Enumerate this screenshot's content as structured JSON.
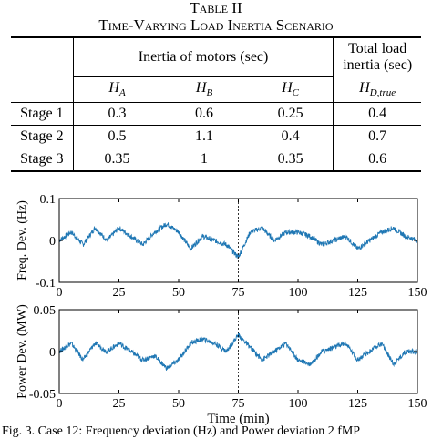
{
  "table": {
    "caption_line1": "Table II",
    "caption_line2": "Time-Varying Load Inertia Scenario",
    "header_group": "Inertia of motors (sec)",
    "header_total": "Total load inertia (sec)",
    "sub_headers": [
      {
        "main": "H",
        "sub": "A"
      },
      {
        "main": "H",
        "sub": "B"
      },
      {
        "main": "H",
        "sub": "C"
      },
      {
        "main": "H",
        "sub": "D,true"
      }
    ],
    "rows": [
      {
        "label": "Stage 1",
        "values": [
          "0.3",
          "0.6",
          "0.25",
          "0.4"
        ]
      },
      {
        "label": "Stage 2",
        "values": [
          "0.5",
          "1.1",
          "0.4",
          "0.7"
        ]
      },
      {
        "label": "Stage 3",
        "values": [
          "0.35",
          "1",
          "0.35",
          "0.6"
        ]
      }
    ]
  },
  "chart_data": [
    {
      "type": "line",
      "ylabel": "Freq. Dev. (Hz)",
      "xlabel": "",
      "xlim": [
        0,
        150
      ],
      "ylim": [
        -0.1,
        0.1
      ],
      "x_ticks": [
        "0",
        "25",
        "50",
        "75",
        "100",
        "125",
        "150"
      ],
      "y_ticks": [
        "0.1",
        "0",
        "-0.1"
      ],
      "marker_x": 75,
      "line_color": "#1f77b4",
      "x": [
        0,
        5,
        10,
        15,
        20,
        25,
        30,
        35,
        40,
        45,
        50,
        55,
        60,
        65,
        70,
        75,
        80,
        85,
        90,
        95,
        100,
        105,
        110,
        115,
        120,
        125,
        130,
        135,
        140,
        145,
        150
      ],
      "y": [
        0.0,
        0.02,
        -0.01,
        0.03,
        0.0,
        0.03,
        0.01,
        -0.01,
        0.02,
        0.04,
        0.02,
        -0.02,
        0.01,
        0.0,
        -0.01,
        -0.04,
        0.02,
        0.03,
        0.0,
        0.02,
        0.02,
        0.01,
        -0.01,
        0.0,
        0.01,
        -0.02,
        0.0,
        0.02,
        0.03,
        0.01,
        0.0
      ]
    },
    {
      "type": "line",
      "ylabel": "Power Dev. (MW)",
      "xlabel": "Time (min)",
      "xlim": [
        0,
        150
      ],
      "ylim": [
        -0.05,
        0.05
      ],
      "x_ticks": [
        "0",
        "25",
        "50",
        "75",
        "100",
        "125",
        "150"
      ],
      "y_ticks": [
        "0.05",
        "0",
        "-0.05"
      ],
      "marker_x": 75,
      "line_color": "#1f77b4",
      "x": [
        0,
        5,
        10,
        15,
        20,
        25,
        30,
        35,
        40,
        45,
        50,
        55,
        60,
        65,
        70,
        75,
        80,
        85,
        90,
        95,
        100,
        105,
        110,
        115,
        120,
        125,
        130,
        135,
        140,
        145,
        150
      ],
      "y": [
        0.0,
        0.01,
        -0.01,
        0.01,
        0.0,
        0.01,
        0.0,
        -0.01,
        -0.005,
        -0.02,
        -0.01,
        0.01,
        0.015,
        0.01,
        0.0,
        0.02,
        0.005,
        -0.01,
        0.0,
        0.01,
        -0.01,
        -0.015,
        0.0,
        0.005,
        0.01,
        -0.01,
        0.0,
        0.01,
        -0.015,
        0.0,
        0.0
      ]
    }
  ],
  "bottom_caption": "Fig. 3. Case 12: Frequency deviation (Hz) and Power deviation 2 fMP"
}
